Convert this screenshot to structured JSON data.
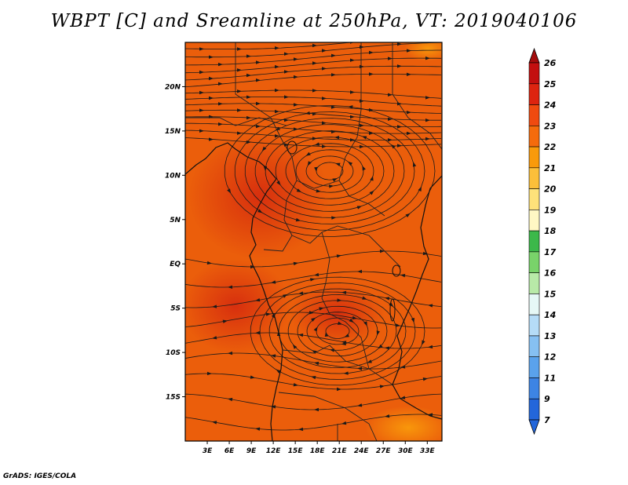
{
  "title": "WBPT [C] and Sreamline at 250hPa, VT: 2019040106",
  "credit": "GrADS: IGES/COLA",
  "map": {
    "lon_range": [
      0,
      35
    ],
    "lat_range": [
      -20,
      25
    ],
    "lat_ticks": [
      {
        "value": 20,
        "label": "20N"
      },
      {
        "value": 15,
        "label": "15N"
      },
      {
        "value": 10,
        "label": "10N"
      },
      {
        "value": 5,
        "label": "5N"
      },
      {
        "value": 0,
        "label": "EQ"
      },
      {
        "value": -5,
        "label": "5S"
      },
      {
        "value": -10,
        "label": "10S"
      },
      {
        "value": -15,
        "label": "15S"
      }
    ],
    "lon_ticks": [
      {
        "value": 3,
        "label": "3E"
      },
      {
        "value": 6,
        "label": "6E"
      },
      {
        "value": 9,
        "label": "9E"
      },
      {
        "value": 12,
        "label": "12E"
      },
      {
        "value": 15,
        "label": "15E"
      },
      {
        "value": 18,
        "label": "18E"
      },
      {
        "value": 21,
        "label": "21E"
      },
      {
        "value": 24,
        "label": "24E"
      },
      {
        "value": 27,
        "label": "27E"
      },
      {
        "value": 30,
        "label": "30E"
      },
      {
        "value": 33,
        "label": "33E"
      }
    ],
    "background_color": "#eb5e0b"
  },
  "colorbar": {
    "levels": [
      {
        "label": "26",
        "color": "#a50c0c"
      },
      {
        "label": "25",
        "color": "#c30f0f"
      },
      {
        "label": "24",
        "color": "#dd2410"
      },
      {
        "label": "23",
        "color": "#f04a10"
      },
      {
        "label": "22",
        "color": "#f56b0c"
      },
      {
        "label": "21",
        "color": "#f99a0b"
      },
      {
        "label": "20",
        "color": "#fcbf3a"
      },
      {
        "label": "19",
        "color": "#fee27a"
      },
      {
        "label": "18",
        "color": "#fff8c4"
      },
      {
        "label": "17",
        "color": "#3cb84a"
      },
      {
        "label": "16",
        "color": "#79d36a"
      },
      {
        "label": "15",
        "color": "#b8eaa8"
      },
      {
        "label": "14",
        "color": "#e6f8f6"
      },
      {
        "label": "13",
        "color": "#b5dcf7"
      },
      {
        "label": "12",
        "color": "#86c0f2"
      },
      {
        "label": "11",
        "color": "#5aa2ec"
      },
      {
        "label": "9",
        "color": "#3d84e4"
      },
      {
        "label": "7",
        "color": "#2366da"
      }
    ]
  }
}
